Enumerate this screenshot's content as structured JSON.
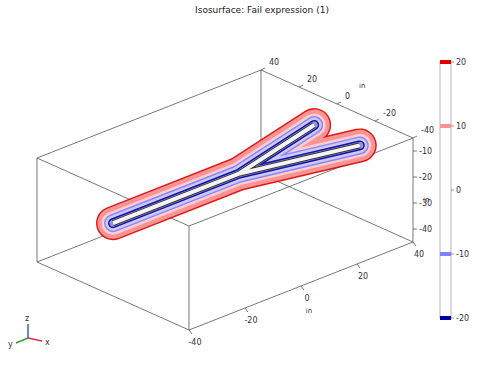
{
  "chart_data": {
    "type": "isosurface",
    "title": "Isosurface: Fail expression (1)",
    "xlabel": "in",
    "ylabel": "in",
    "zlabel": "in",
    "xlim": [
      -40,
      40
    ],
    "xticks": [
      -40,
      -20,
      0,
      20,
      40
    ],
    "ylim": [
      -40,
      40
    ],
    "yticks": [
      -40,
      -20,
      0,
      20,
      40
    ],
    "zlim": [
      -45,
      -5
    ],
    "zticks": [
      -40,
      -30,
      -20,
      -10
    ],
    "levels": [
      -20,
      -10,
      10,
      20
    ],
    "colors": [
      "#0000a0",
      "#8080ff",
      "#ff9090",
      "#e00000"
    ],
    "colorbar": {
      "range": [
        -20,
        20
      ],
      "ticks": [
        -20,
        -10,
        0,
        10,
        20
      ]
    },
    "triad_labels": [
      "x",
      "y",
      "z"
    ]
  }
}
